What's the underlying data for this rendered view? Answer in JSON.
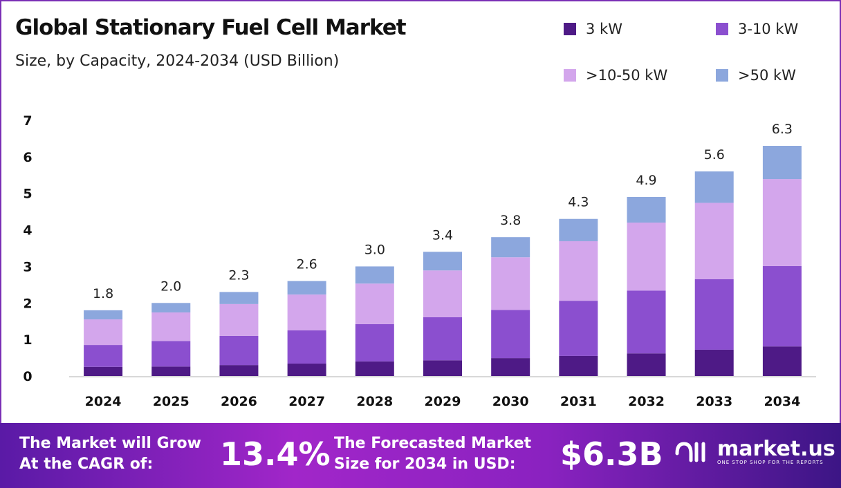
{
  "chart_data": {
    "type": "bar",
    "stacked": true,
    "title": "Global Stationary Fuel Cell Market",
    "subtitle": "Size, by Capacity, 2024-2034 (USD Billion)",
    "categories": [
      "2024",
      "2025",
      "2026",
      "2027",
      "2028",
      "2029",
      "2030",
      "2031",
      "2032",
      "2033",
      "2034"
    ],
    "totals": [
      "1.8",
      "2.0",
      "2.3",
      "2.6",
      "3.0",
      "3.4",
      "3.8",
      "4.3",
      "4.9",
      "5.6",
      "6.3"
    ],
    "series": [
      {
        "name": "3 kW",
        "color": "#4e1a86",
        "values": [
          0.25,
          0.26,
          0.3,
          0.34,
          0.4,
          0.43,
          0.49,
          0.55,
          0.62,
          0.72,
          0.81
        ]
      },
      {
        "name": "3-10 kW",
        "color": "#8b4fcf",
        "values": [
          0.6,
          0.7,
          0.8,
          0.91,
          1.02,
          1.18,
          1.32,
          1.51,
          1.72,
          1.93,
          2.2
        ]
      },
      {
        "name": ">10-50 kW",
        "color": "#d3a6ec",
        "values": [
          0.7,
          0.78,
          0.87,
          0.98,
          1.11,
          1.28,
          1.44,
          1.63,
          1.86,
          2.09,
          2.38
        ]
      },
      {
        "name": ">50 kW",
        "color": "#8ca7dd",
        "values": [
          0.25,
          0.26,
          0.33,
          0.37,
          0.47,
          0.51,
          0.55,
          0.61,
          0.7,
          0.86,
          0.91
        ]
      }
    ],
    "yticks": [
      "0",
      "1",
      "2",
      "3",
      "4",
      "5",
      "6",
      "7"
    ],
    "ylim": [
      0,
      7
    ],
    "grid": false,
    "legend_position": "top-right"
  },
  "footer": {
    "cagr_label_1": "The Market will Grow",
    "cagr_label_2": "At the CAGR of:",
    "cagr_value": "13.4%",
    "forecast_label_1": "The Forecasted Market",
    "forecast_label_2": "Size for 2034 in USD:",
    "forecast_value": "$6.3B",
    "logo_name": "market.us",
    "logo_tagline": "ONE STOP SHOP FOR THE REPORTS"
  }
}
